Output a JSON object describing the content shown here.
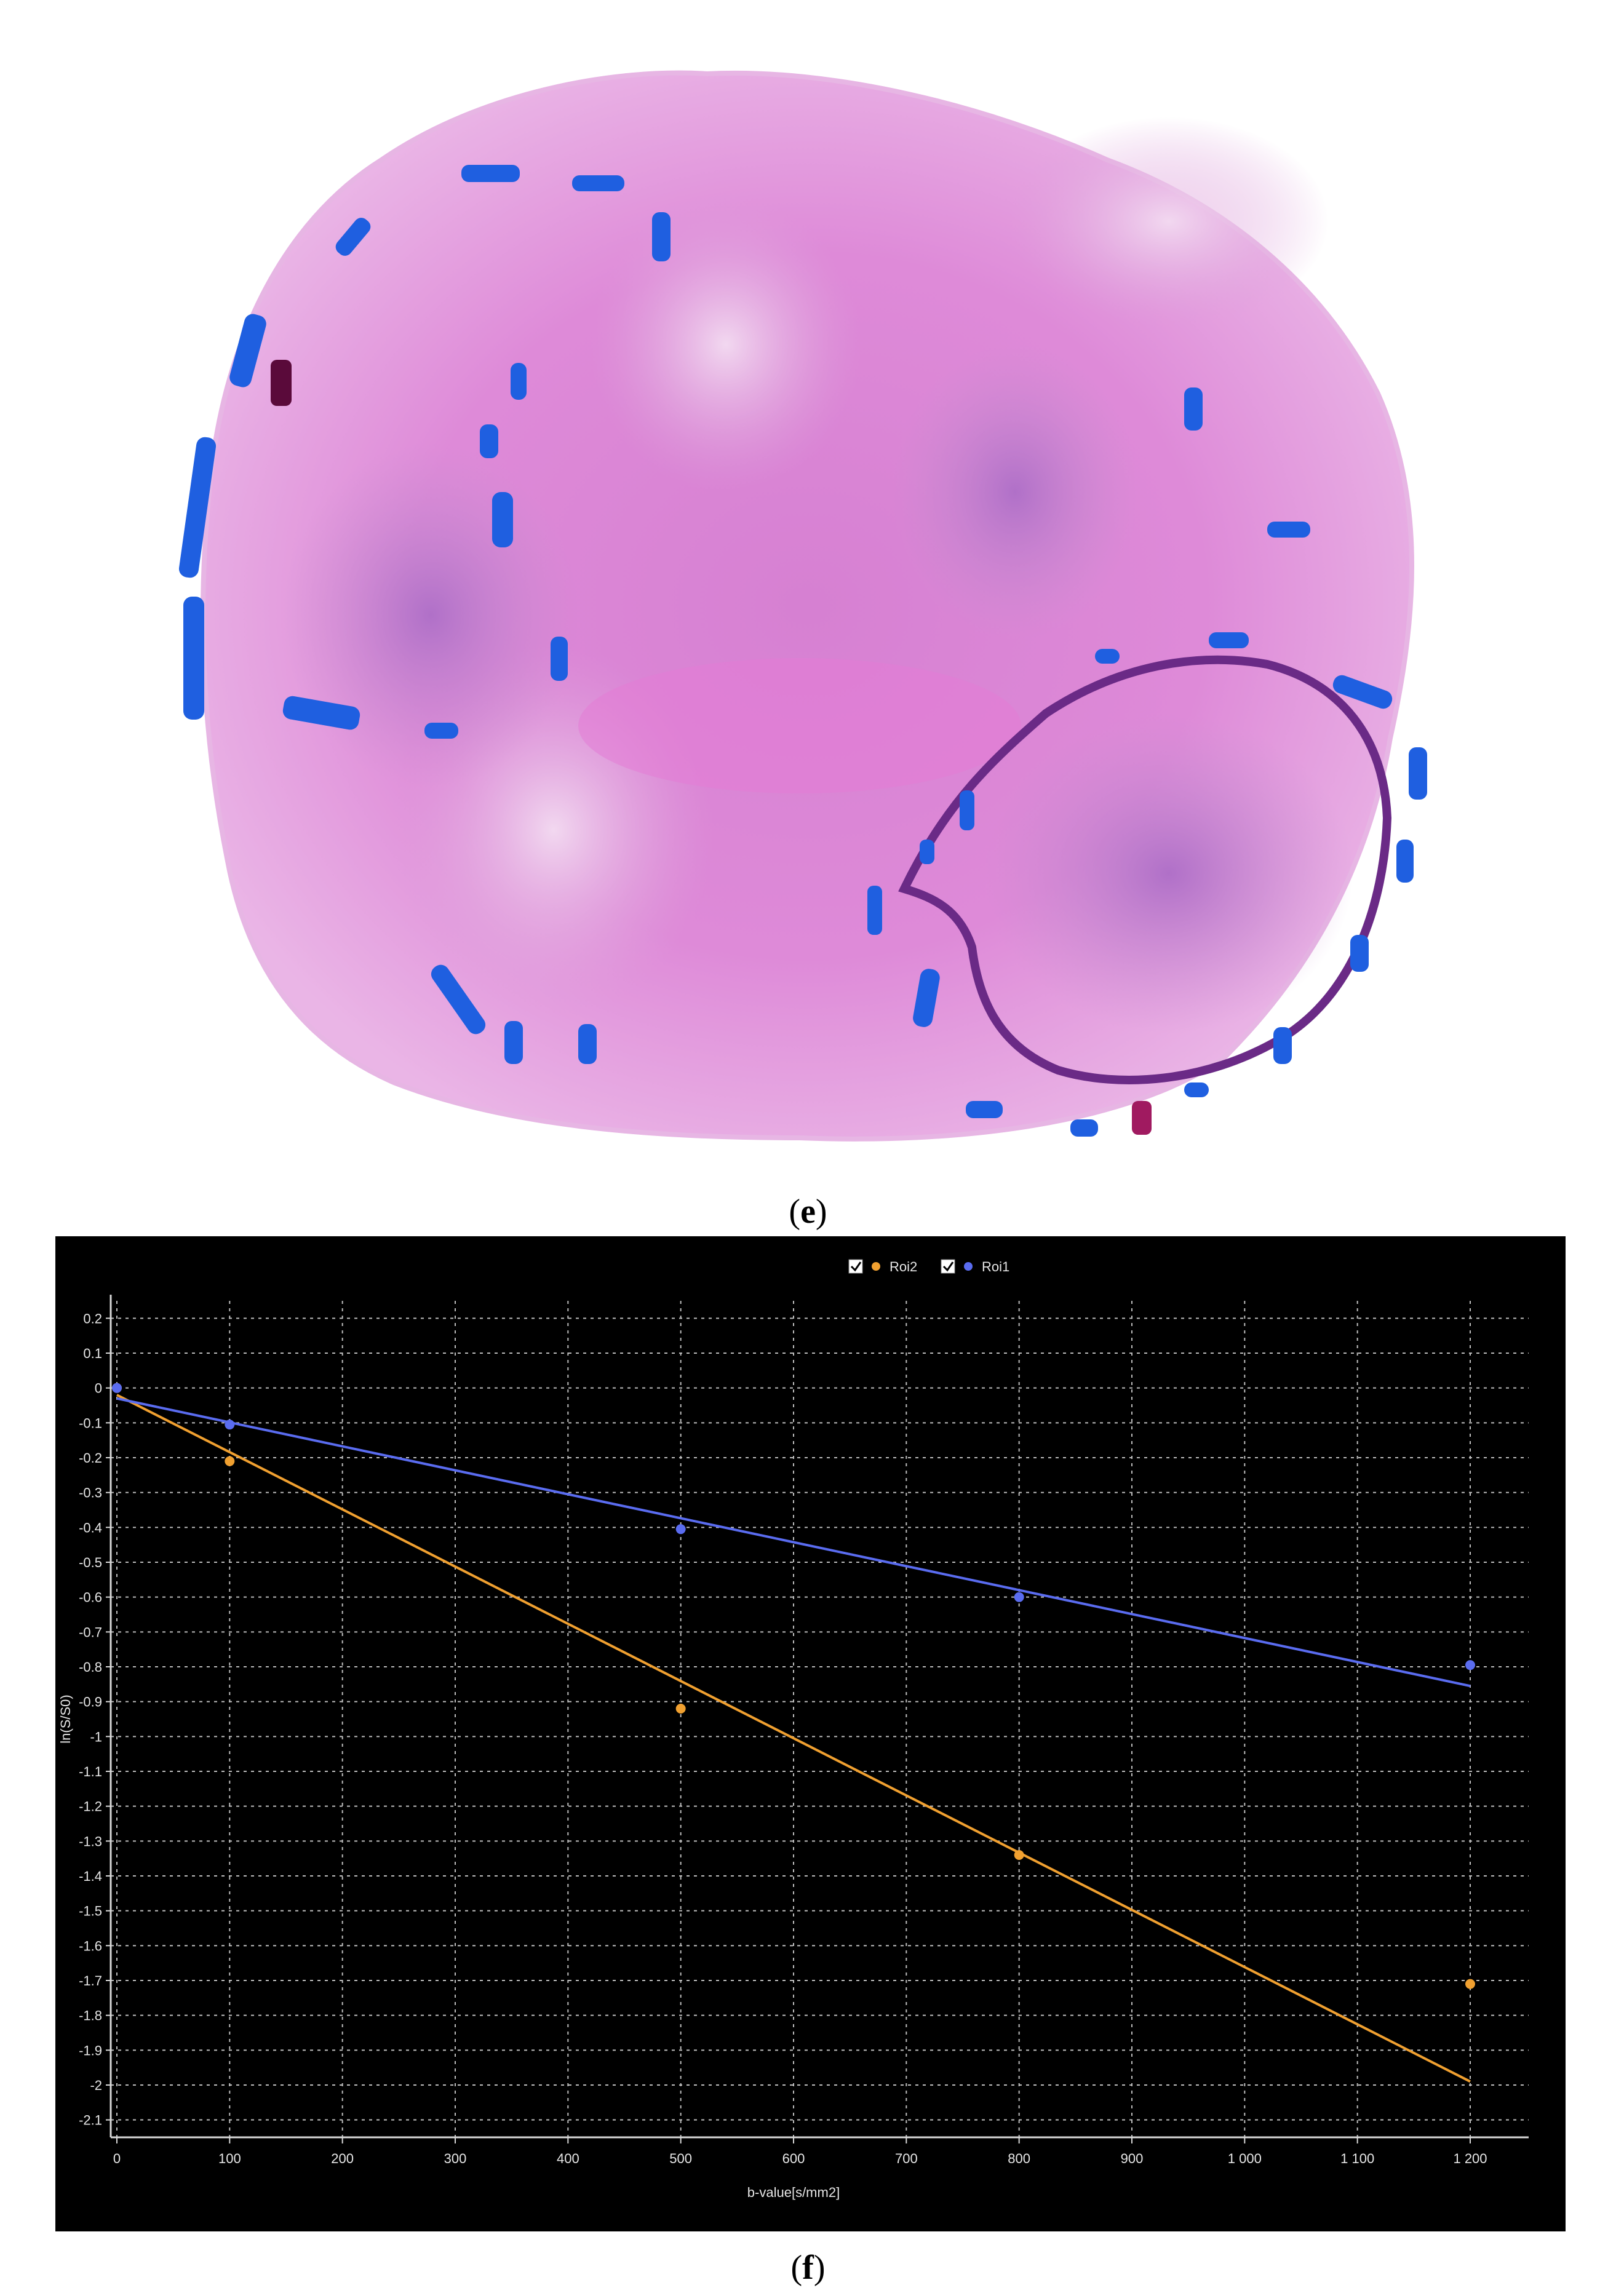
{
  "figure": {
    "caption_e_letter": "e",
    "caption_f_letter": "f"
  },
  "histology": {
    "tissue_color": "#dc7fd4",
    "roi_outline_color": "#6a2a86",
    "marker_color": "#1f5fe0"
  },
  "chart_data": {
    "type": "scatter",
    "xlabel": "b-value[s/mm2]",
    "ylabel": "ln(S/S0)",
    "xlim": [
      0,
      1200
    ],
    "ylim": [
      -2.15,
      0.25
    ],
    "x_ticks": [
      0,
      100,
      200,
      300,
      400,
      500,
      600,
      700,
      800,
      900,
      1000,
      1100,
      1200
    ],
    "x_tick_labels": [
      "0",
      "100",
      "200",
      "300",
      "400",
      "500",
      "600",
      "700",
      "800",
      "900",
      "1 000",
      "1 100",
      "1 200"
    ],
    "y_ticks": [
      0.2,
      0.1,
      0,
      -0.1,
      -0.2,
      -0.3,
      -0.4,
      -0.5,
      -0.6,
      -0.7,
      -0.8,
      -0.9,
      -1,
      -1.1,
      -1.2,
      -1.3,
      -1.4,
      -1.5,
      -1.6,
      -1.7,
      -1.8,
      -1.9,
      -2,
      -2.1
    ],
    "y_tick_labels": [
      "0.2",
      "0.1",
      "0",
      "-0.1",
      "-0.2",
      "-0.3",
      "-0.4",
      "-0.5",
      "-0.6",
      "-0.7",
      "-0.8",
      "-0.9",
      "-1",
      "-1.1",
      "-1.2",
      "-1.3",
      "-1.4",
      "-1.5",
      "-1.6",
      "-1.7",
      "-1.8",
      "-1.9",
      "-2",
      "-2.1"
    ],
    "grid": true,
    "legend_position": "top-center",
    "background": "#000000",
    "series": [
      {
        "name": "Roi2",
        "color": "#f0a030",
        "checked": true,
        "points": [
          [
            0,
            0
          ],
          [
            100,
            -0.21
          ],
          [
            500,
            -0.92
          ],
          [
            800,
            -1.34
          ],
          [
            1200,
            -1.71
          ]
        ],
        "fit": [
          [
            0,
            -0.02
          ],
          [
            1200,
            -1.99
          ]
        ]
      },
      {
        "name": "Roi1",
        "color": "#5a6cf0",
        "checked": true,
        "points": [
          [
            0,
            0
          ],
          [
            100,
            -0.105
          ],
          [
            500,
            -0.405
          ],
          [
            800,
            -0.6
          ],
          [
            1200,
            -0.795
          ]
        ],
        "fit": [
          [
            0,
            -0.03
          ],
          [
            1200,
            -0.855
          ]
        ]
      }
    ]
  }
}
